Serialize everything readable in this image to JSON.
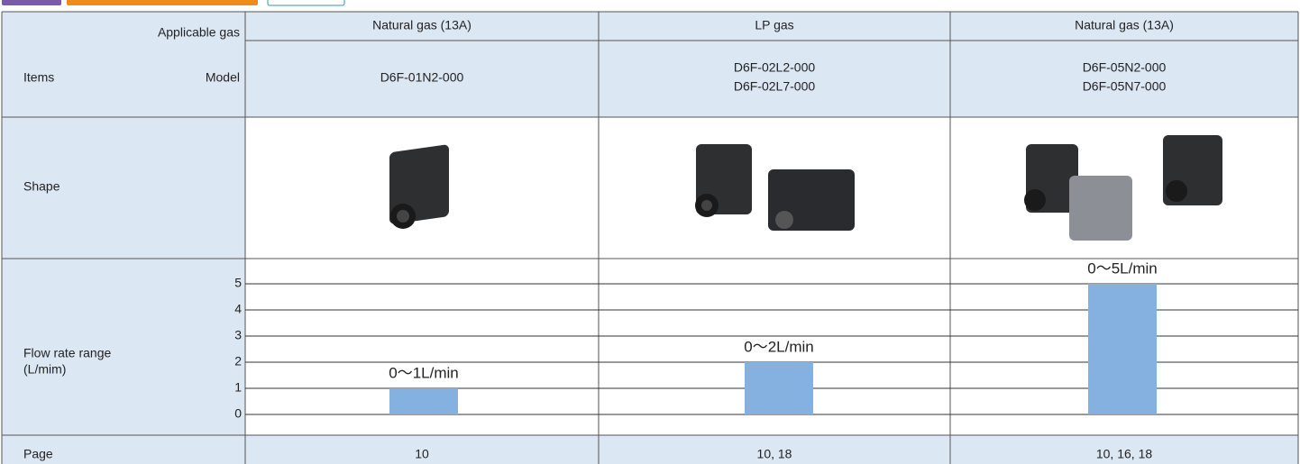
{
  "table": {
    "header": {
      "applicable_gas": "Applicable gas",
      "items": "Items",
      "model": "Model",
      "gases": [
        "Natural gas (13A)",
        "LP gas",
        "Natural gas (13A)"
      ],
      "models": [
        [
          "D6F-01N2-000"
        ],
        [
          "D6F-02L2-000",
          "D6F-02L7-000"
        ],
        [
          "D6F-05N2-000",
          "D6F-05N7-000"
        ]
      ]
    },
    "rows": {
      "shape": "Shape",
      "flow_label": "Flow rate range",
      "flow_unit": "(L/mim)",
      "page": "Page",
      "pages": [
        "10",
        "10, 18",
        "10, 16, 18"
      ]
    }
  },
  "chart_data": {
    "type": "bar",
    "values": [
      1,
      2,
      5
    ],
    "value_labels": [
      "0〜1L/min",
      "0〜2L/min",
      "0〜5L/min"
    ],
    "color": "#85b1e0",
    "ylim": [
      0,
      5
    ],
    "yticks": [
      0,
      1,
      2,
      3,
      4,
      5
    ],
    "grid": true
  }
}
